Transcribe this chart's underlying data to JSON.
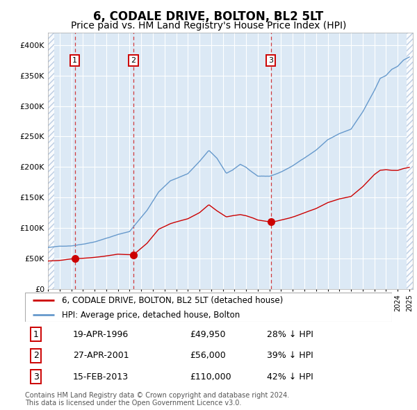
{
  "title": "6, CODALE DRIVE, BOLTON, BL2 5LT",
  "subtitle": "Price paid vs. HM Land Registry's House Price Index (HPI)",
  "title_fontsize": 12,
  "subtitle_fontsize": 10,
  "background_color": "#ffffff",
  "plot_bg_color": "#dce9f5",
  "grid_color": "#ffffff",
  "sale_year_decimals": [
    1996.3,
    2001.33,
    2013.12
  ],
  "sale_prices": [
    49950,
    56000,
    110000
  ],
  "sale_labels": [
    "1",
    "2",
    "3"
  ],
  "legend_entries": [
    "6, CODALE DRIVE, BOLTON, BL2 5LT (detached house)",
    "HPI: Average price, detached house, Bolton"
  ],
  "table_rows": [
    [
      "1",
      "19-APR-1996",
      "£49,950",
      "28% ↓ HPI"
    ],
    [
      "2",
      "27-APR-2001",
      "£56,000",
      "39% ↓ HPI"
    ],
    [
      "3",
      "15-FEB-2013",
      "£110,000",
      "42% ↓ HPI"
    ]
  ],
  "footer": "Contains HM Land Registry data © Crown copyright and database right 2024.\nThis data is licensed under the Open Government Licence v3.0.",
  "red_color": "#cc0000",
  "blue_color": "#6699cc",
  "ylim": [
    0,
    420000
  ],
  "yticks": [
    0,
    50000,
    100000,
    150000,
    200000,
    250000,
    300000,
    350000,
    400000
  ],
  "ytick_labels": [
    "£0",
    "£50K",
    "£100K",
    "£150K",
    "£200K",
    "£250K",
    "£300K",
    "£350K",
    "£400K"
  ],
  "hpi_anchors_t": [
    1994.0,
    1995.0,
    1996.0,
    1997.0,
    1998.0,
    1999.0,
    2000.0,
    2001.0,
    2002.5,
    2003.5,
    2004.5,
    2005.0,
    2006.0,
    2007.0,
    2007.8,
    2008.5,
    2009.3,
    2009.8,
    2010.5,
    2011.0,
    2011.5,
    2012.0,
    2013.0,
    2013.5,
    2014.0,
    2015.0,
    2016.0,
    2017.0,
    2018.0,
    2019.0,
    2020.0,
    2021.0,
    2022.0,
    2022.5,
    2023.0,
    2023.5,
    2024.0,
    2024.5,
    2025.0
  ],
  "hpi_anchors_v": [
    68000,
    70000,
    71000,
    74000,
    78000,
    84000,
    90000,
    95000,
    130000,
    160000,
    178000,
    182000,
    190000,
    210000,
    228000,
    215000,
    190000,
    195000,
    205000,
    200000,
    192000,
    185000,
    185000,
    188000,
    192000,
    202000,
    215000,
    228000,
    245000,
    255000,
    262000,
    290000,
    325000,
    345000,
    350000,
    360000,
    365000,
    375000,
    380000
  ],
  "red_anchors_t": [
    1994.0,
    1995.0,
    1996.3,
    1997.0,
    1998.0,
    1999.0,
    2000.0,
    2001.33,
    2002.5,
    2003.5,
    2004.5,
    2005.0,
    2006.0,
    2007.0,
    2007.8,
    2008.5,
    2009.3,
    2009.8,
    2010.5,
    2011.0,
    2011.5,
    2012.0,
    2013.12,
    2013.5,
    2014.0,
    2015.0,
    2016.0,
    2017.0,
    2018.0,
    2019.0,
    2020.0,
    2021.0,
    2022.0,
    2022.5,
    2023.0,
    2023.5,
    2024.0,
    2024.5,
    2025.0
  ],
  "red_anchors_v": [
    46000,
    47000,
    49950,
    50500,
    52000,
    54000,
    57000,
    56000,
    75000,
    98000,
    107000,
    110000,
    115000,
    125000,
    138000,
    128000,
    118000,
    120000,
    122000,
    120000,
    117000,
    113000,
    110000,
    111000,
    113000,
    118000,
    125000,
    132000,
    142000,
    148000,
    152000,
    168000,
    188000,
    195000,
    196000,
    195000,
    195000,
    198000,
    200000
  ]
}
